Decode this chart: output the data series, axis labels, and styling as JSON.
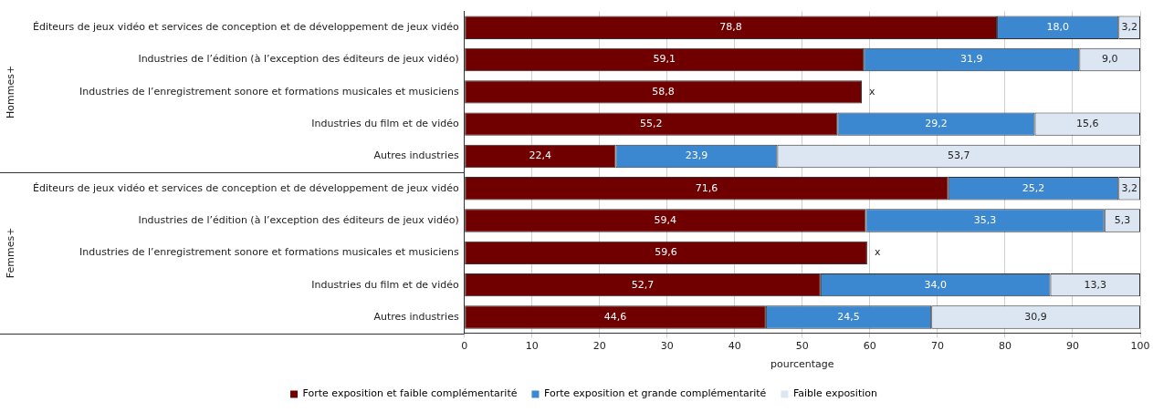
{
  "chart_data": {
    "type": "bar",
    "orientation": "horizontal",
    "stacked": true,
    "categories": [
      "Éditeurs de jeux vidéo et services de conception et de développement de jeux vidéo",
      "Industries de l’édition (à l’exception des éditeurs de jeux vidéo)",
      "Industries de l’enregistrement sonore et formations musicales et musiciens",
      "Industries du film et de vidéo",
      "Autres industries",
      "Éditeurs de jeux vidéo et services de conception et de développement de jeux vidéo",
      "Industries de l’édition (à l’exception des éditeurs de jeux vidéo)",
      "Industries de l’enregistrement sonore et formations musicales et musiciens",
      "Industries du film et de vidéo",
      "Autres industries"
    ],
    "series": [
      {
        "name": "Forte exposition et faible complémentarité",
        "color": "#700000",
        "values": [
          78.8,
          59.1,
          58.8,
          55.2,
          22.4,
          71.6,
          59.4,
          59.6,
          52.7,
          44.6
        ],
        "value_labels": [
          "78,8",
          "59,1",
          "58,8",
          "55,2",
          "22,4",
          "71,6",
          "59,4",
          "59,6",
          "52,7",
          "44,6"
        ]
      },
      {
        "name": "Forte exposition et grande complémentarité",
        "color": "#3b87d0",
        "values": [
          18.0,
          31.9,
          null,
          29.2,
          23.9,
          25.2,
          35.3,
          null,
          34.0,
          24.5
        ],
        "value_labels": [
          "18,0",
          "31,9",
          "x",
          "29,2",
          "23,9",
          "25,2",
          "35,3",
          "x",
          "34,0",
          "24,5"
        ]
      },
      {
        "name": "Faible exposition",
        "color": "#dce6f2",
        "values": [
          3.2,
          9.0,
          null,
          15.6,
          53.7,
          3.2,
          5.3,
          null,
          13.3,
          30.9
        ],
        "value_labels": [
          "3,2",
          "9,0",
          null,
          "15,6",
          "53,7",
          "3,2",
          "5,3",
          null,
          "13,3",
          "30,9"
        ]
      }
    ],
    "xlim": [
      0,
      100
    ],
    "xticks": [
      0,
      10,
      20,
      30,
      40,
      50,
      60,
      70,
      80,
      90,
      100
    ],
    "xlabel": "pourcentage",
    "grid": "x",
    "legend": "bottom",
    "annotations": [
      "Hommes+",
      "Femmes+"
    ]
  }
}
